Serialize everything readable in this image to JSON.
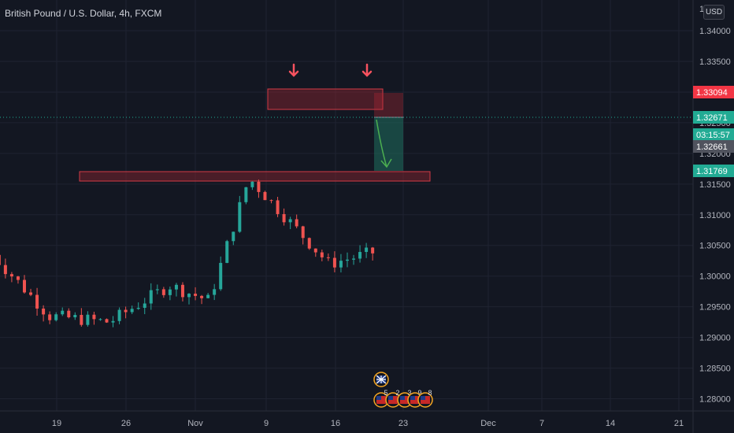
{
  "header": {
    "title": "British Pound / U.S. Dollar, 4h, FXCM",
    "currency_button": "USD"
  },
  "price_axis": {
    "top_partial": "1",
    "ticks": [
      "1.34000",
      "1.33500",
      "1.33000",
      "1.32500",
      "1.32000",
      "1.31500",
      "1.31000",
      "1.30500",
      "1.30000",
      "1.29500",
      "1.29000",
      "1.28500",
      "1.28000"
    ]
  },
  "price_labels": [
    {
      "text": "1.33094",
      "color": "#f23645"
    },
    {
      "text": "1.32671",
      "color": "#22ab94"
    },
    {
      "text": "03:15:57",
      "color": "#22ab94"
    },
    {
      "text": "1.32661",
      "color": "#50535e"
    },
    {
      "text": "1.31769",
      "color": "#22ab94"
    }
  ],
  "time_axis": {
    "ticks": [
      "19",
      "26",
      "Nov",
      "9",
      "16",
      "23",
      "Dec",
      "7",
      "14",
      "21"
    ]
  },
  "events": {
    "flag_top": "uk-flag-icon",
    "badges": [
      "5",
      "2",
      "3",
      "9",
      "8"
    ]
  },
  "colors": {
    "up": "#26a69a",
    "down": "#ef5350",
    "zone": "#b22833",
    "position_green": "#1f6f5f",
    "arrow_red": "#f7525f",
    "arrow_green": "#4caf50"
  },
  "chart_data": {
    "type": "candlestick",
    "symbol": "British Pound / U.S. Dollar",
    "timeframe": "4h",
    "ylim": [
      1.2775,
      1.3445
    ],
    "price_ticks": [
      1.34,
      1.335,
      1.33,
      1.325,
      1.32,
      1.315,
      1.31,
      1.305,
      1.3,
      1.295,
      1.29,
      1.285,
      1.28
    ],
    "x_range_days": [
      "Oct 16",
      "Dec 22"
    ],
    "x_tick_labels": [
      "19",
      "26",
      "Nov",
      "9",
      "16",
      "23",
      "Dec",
      "7",
      "14",
      "21"
    ],
    "path": [
      [
        0,
        1.304
      ],
      [
        6,
        1.2935
      ],
      [
        12,
        1.2925
      ],
      [
        18,
        1.2985
      ],
      [
        22,
        1.296
      ],
      [
        26,
        1.316
      ],
      [
        28,
        1.3125
      ],
      [
        34,
        1.302
      ],
      [
        40,
        1.3045
      ],
      [
        44,
        1.2995
      ],
      [
        48,
        1.2955
      ],
      [
        52,
        1.2935
      ],
      [
        54,
        1.2915
      ],
      [
        58,
        1.295
      ],
      [
        62,
        1.2975
      ],
      [
        66,
        1.302
      ],
      [
        70,
        1.314
      ],
      [
        72,
        1.321
      ],
      [
        74,
        1.3225
      ],
      [
        78,
        1.322
      ],
      [
        82,
        1.3275
      ],
      [
        84,
        1.3275
      ],
      [
        88,
        1.319
      ],
      [
        92,
        1.315
      ],
      [
        94,
        1.311
      ],
      [
        96,
        1.316
      ],
      [
        98,
        1.3185
      ],
      [
        100,
        1.3205
      ],
      [
        104,
        1.3235
      ],
      [
        108,
        1.3255
      ],
      [
        112,
        1.3285
      ],
      [
        114,
        1.3275
      ],
      [
        116,
        1.3265
      ]
    ],
    "zones": [
      {
        "from_day": 1.33055,
        "top": 1.3316,
        "bottom": 1.3286,
        "x_start": 3.2,
        "x_end": 11.75
      },
      {
        "top": 1.31779,
        "bottom": 1.31659,
        "x_start": 7.0,
        "x_end": 14.2
      }
    ],
    "position": {
      "entry": 1.32661,
      "stop": 1.33094,
      "target": 1.31769,
      "x_start": 10.65,
      "x_end": 12.25
    },
    "current_price": 1.32671,
    "annotations": [
      "down-arrow at first top",
      "down-arrow at second top",
      "projected drop arrow to support"
    ]
  }
}
